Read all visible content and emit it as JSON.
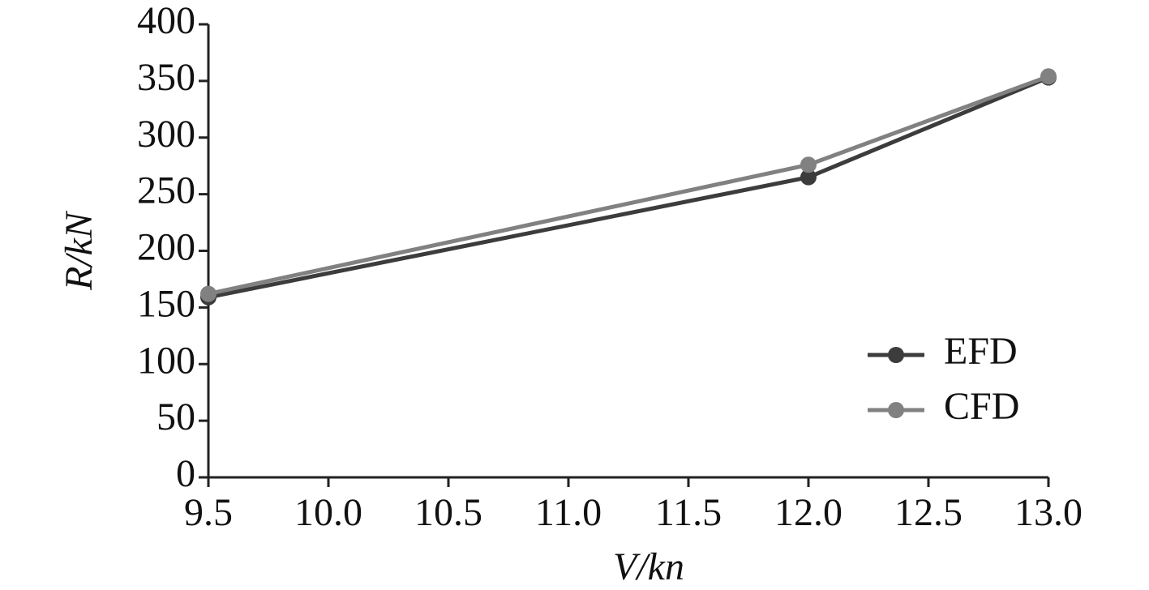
{
  "chart_data": {
    "type": "line",
    "x_label": "V/kn",
    "y_label": "R/kN",
    "x": [
      9.5,
      12.0,
      13.0
    ],
    "series": [
      {
        "name": "EFD",
        "color": "#3c3c3c",
        "values": [
          159,
          265,
          353
        ]
      },
      {
        "name": "CFD",
        "color": "#818181",
        "values": [
          162,
          276,
          354
        ]
      }
    ],
    "xlim": [
      9.5,
      13.0
    ],
    "xticks": [
      {
        "value": 9.5,
        "label": "9.5"
      },
      {
        "value": 10.0,
        "label": "10.0"
      },
      {
        "value": 10.5,
        "label": "10.5"
      },
      {
        "value": 11.0,
        "label": "11.0"
      },
      {
        "value": 11.5,
        "label": "11.5"
      },
      {
        "value": 12.0,
        "label": "12.0"
      },
      {
        "value": 12.5,
        "label": "12.5"
      },
      {
        "value": 13.0,
        "label": "13.0"
      }
    ],
    "ylim": [
      0,
      400
    ],
    "yticks": [
      0,
      50,
      100,
      150,
      200,
      250,
      300,
      350,
      400
    ],
    "grid": false,
    "legend": "lower right"
  }
}
